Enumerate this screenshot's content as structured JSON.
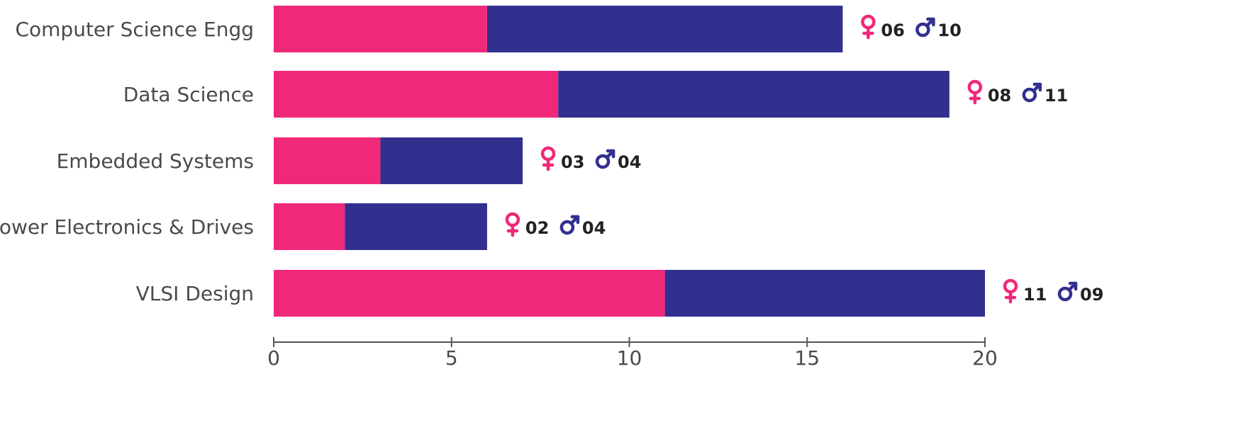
{
  "chart_data": {
    "type": "bar",
    "orientation": "horizontal",
    "stacked": true,
    "categories": [
      "Computer Science Engg",
      "Data Science",
      "Embedded Systems",
      "Power Electronics & Drives",
      "VLSI Design"
    ],
    "series": [
      {
        "values": [
          6,
          8,
          3,
          2,
          11
        ]
      },
      {
        "values": [
          10,
          11,
          4,
          4,
          9
        ]
      }
    ],
    "xlim": [
      0,
      20
    ],
    "xticks": [
      0,
      5,
      10,
      15,
      20
    ],
    "grid": false,
    "data_labels": [
      {
        "female": "06",
        "male": "10"
      },
      {
        "female": "08",
        "male": "11"
      },
      {
        "female": "03",
        "male": "04"
      },
      {
        "female": "02",
        "male": "04"
      },
      {
        "female": "11",
        "male": "09"
      }
    ]
  },
  "colors": {
    "female": "#f0287a",
    "male": "#31308f",
    "axis": "#555555",
    "text": "#4a4a4a",
    "value_text": "#222222"
  },
  "icons": {
    "female": "female-symbol-icon",
    "male": "male-symbol-icon"
  }
}
